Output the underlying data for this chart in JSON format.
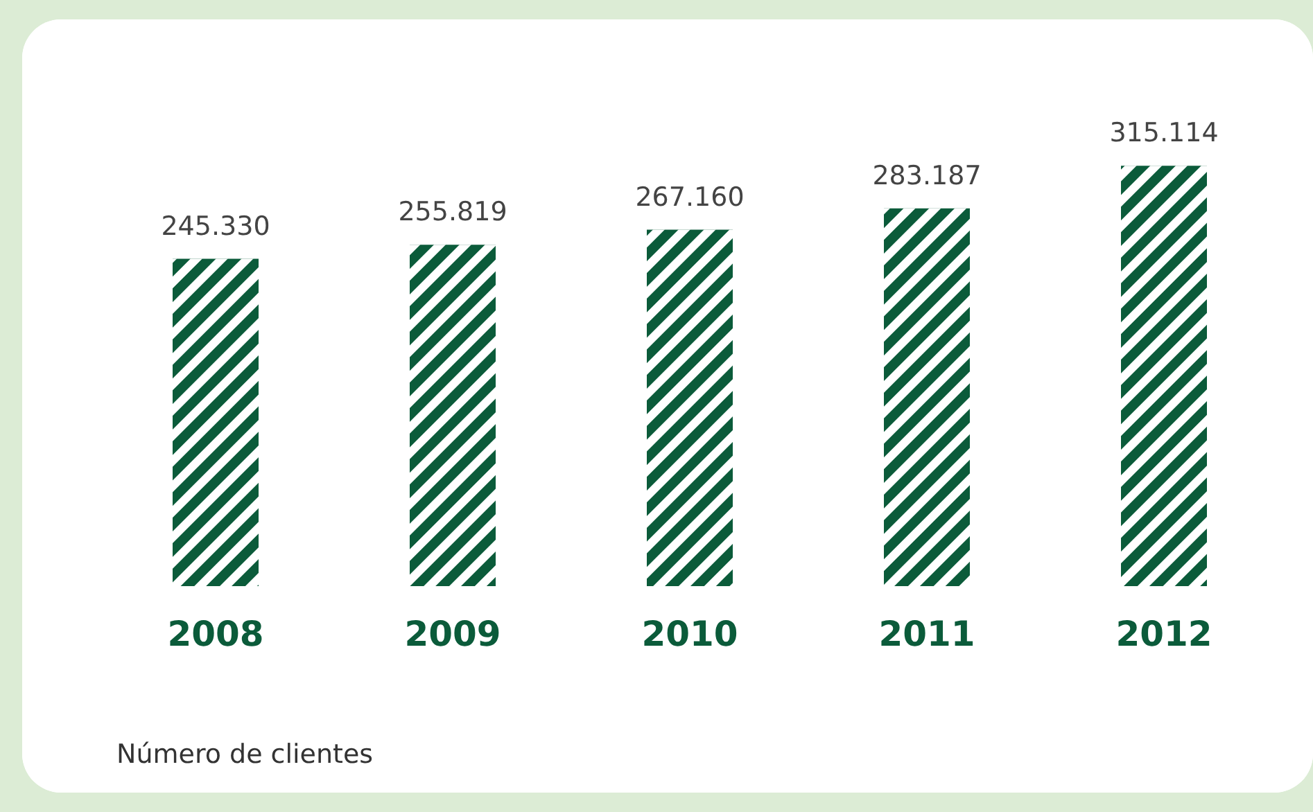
{
  "chart_data": {
    "type": "bar",
    "categories": [
      "2008",
      "2009",
      "2010",
      "2011",
      "2012"
    ],
    "values": [
      245330,
      255819,
      267160,
      283187,
      315114
    ],
    "value_labels": [
      "245.330",
      "255.819",
      "267.160",
      "283.187",
      "315.114"
    ],
    "color": "#0b5b3a",
    "annotations": [
      "Número de clientes"
    ]
  }
}
